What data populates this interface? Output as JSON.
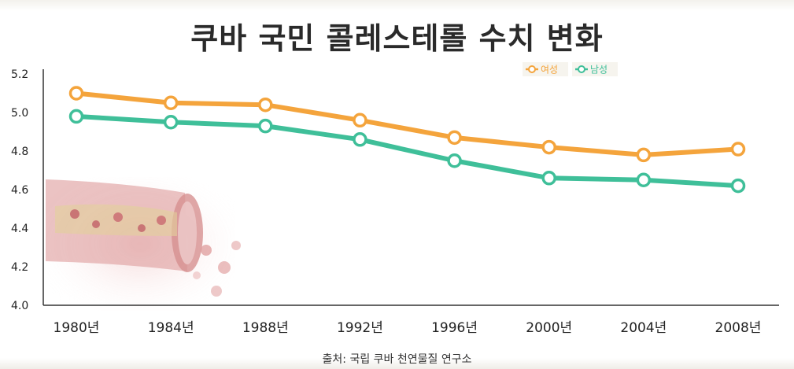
{
  "title": "쿠바 국민 콜레스테롤 수치 변화",
  "source": "출처: 국립 쿠바 천연물질 연구소",
  "chart_data": {
    "type": "line",
    "title": "쿠바 국민 콜레스테롤 수치 변화",
    "xlabel": "",
    "ylabel": "",
    "categories": [
      "1980년",
      "1984년",
      "1988년",
      "1992년",
      "1996년",
      "2000년",
      "2004년",
      "2008년"
    ],
    "yticks": [
      "4.0",
      "4.2",
      "4.4",
      "4.6",
      "4.8",
      "5.0",
      "5.2"
    ],
    "ylim": [
      4.0,
      5.2
    ],
    "grid": false,
    "legend": "top-right",
    "series": [
      {
        "name": "여성",
        "color": "#f4a43c",
        "values": [
          5.1,
          5.05,
          5.04,
          4.96,
          4.87,
          4.82,
          4.78,
          4.81
        ]
      },
      {
        "name": "남성",
        "color": "#3fbf99",
        "values": [
          4.98,
          4.95,
          4.93,
          4.86,
          4.75,
          4.66,
          4.65,
          4.62
        ]
      }
    ]
  }
}
